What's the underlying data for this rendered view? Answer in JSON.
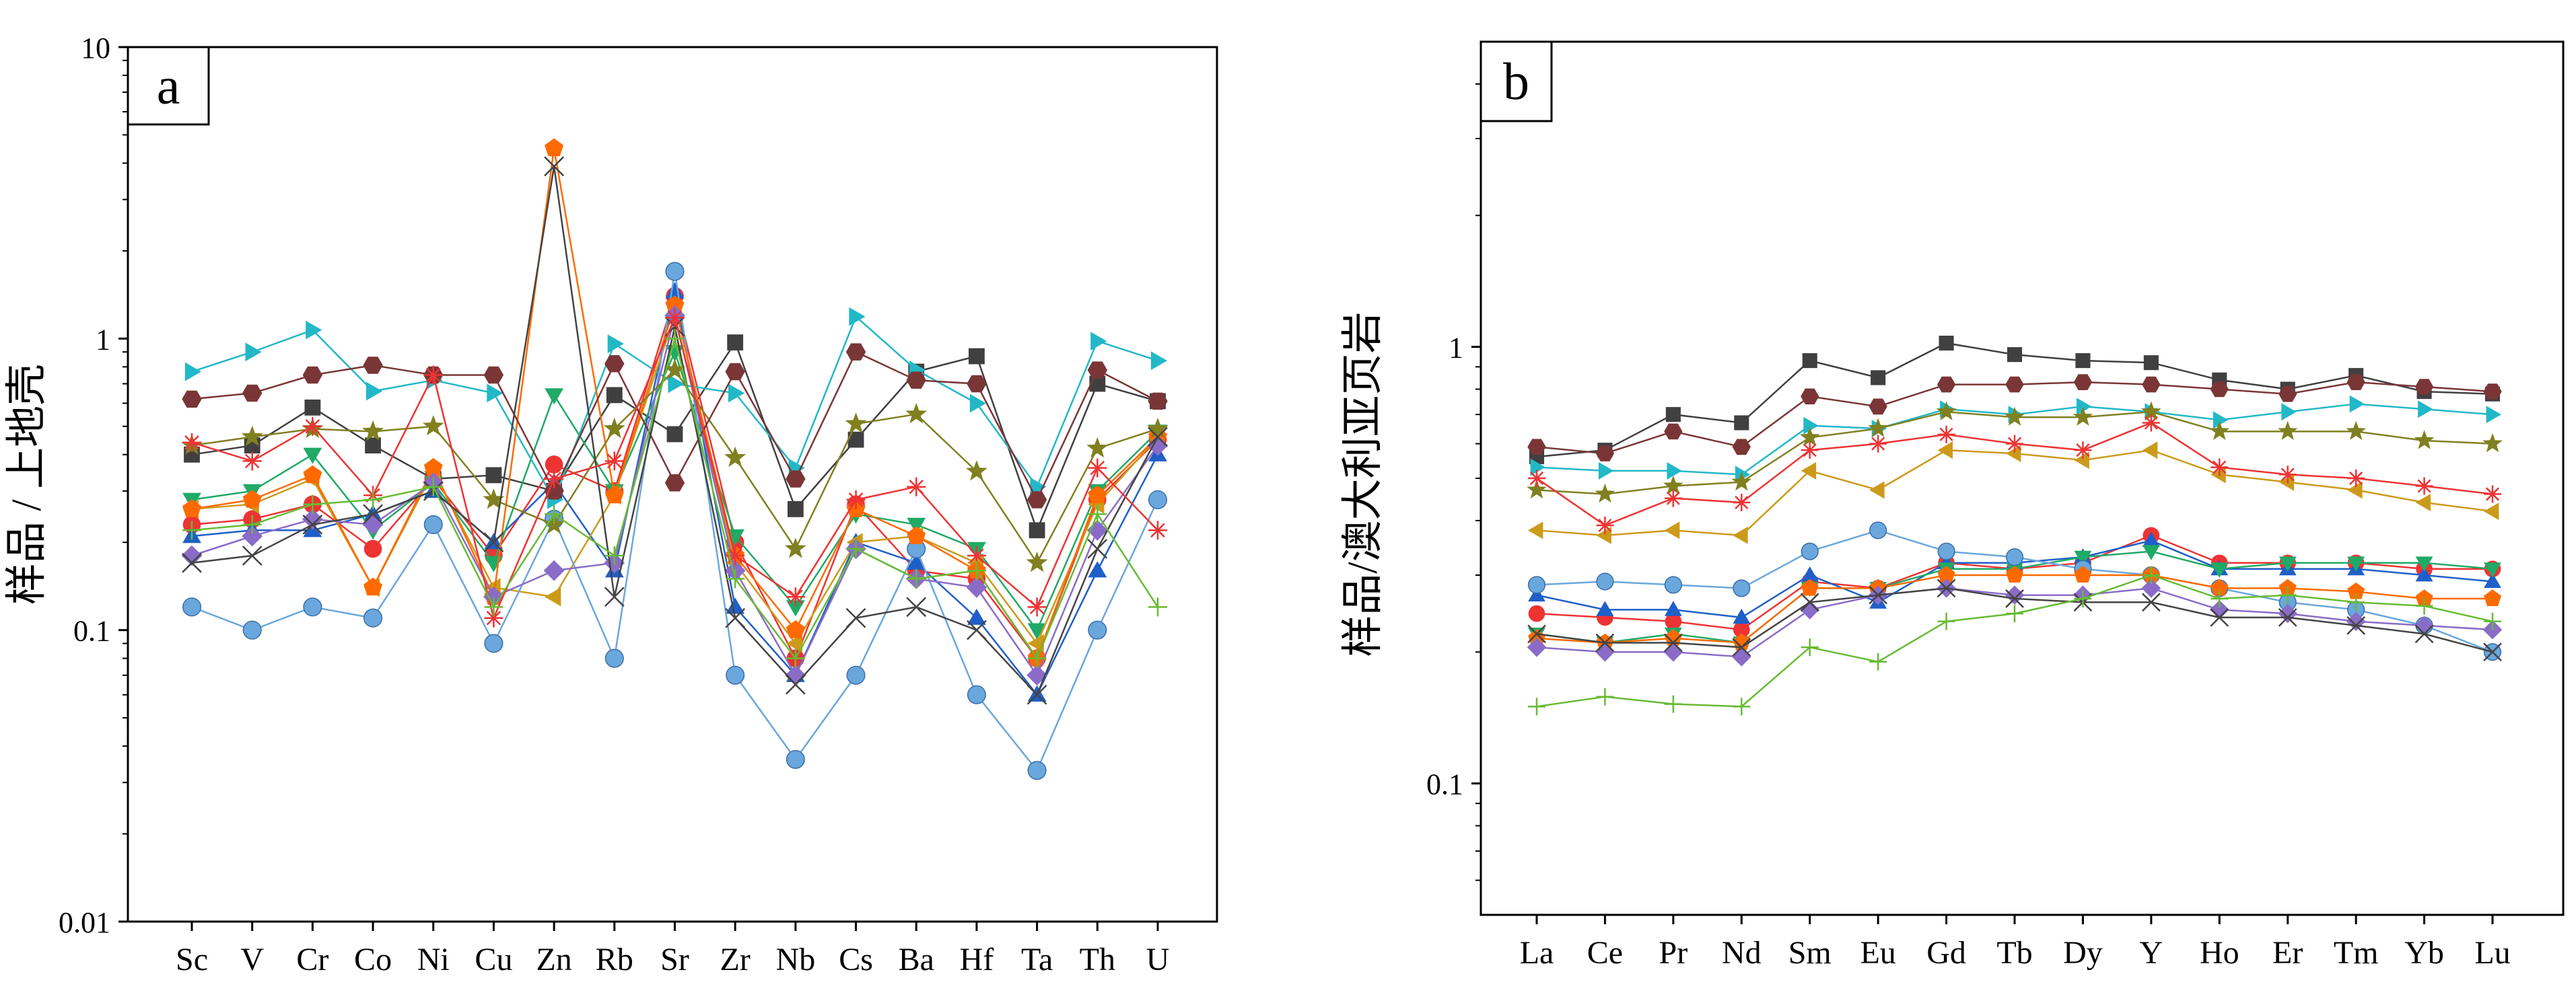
{
  "chart_data": [
    {
      "type": "line",
      "panel_label": "a",
      "ylabel": "样品 / 上地壳",
      "yscale": "log",
      "ylim": [
        0.01,
        10
      ],
      "ytick_labels": [
        "0.01",
        "0.1",
        "1",
        "10"
      ],
      "categories": [
        "Sc",
        "V",
        "Cr",
        "Co",
        "Ni",
        "Cu",
        "Zn",
        "Rb",
        "Sr",
        "Zr",
        "Nb",
        "Cs",
        "Ba",
        "Hf",
        "Ta",
        "Th",
        "U"
      ],
      "series": [
        {
          "color": "#404040",
          "marker": "square",
          "values": [
            0.4,
            0.43,
            0.58,
            0.43,
            0.33,
            0.34,
            0.3,
            0.64,
            0.47,
            0.97,
            0.26,
            0.45,
            0.77,
            0.87,
            0.22,
            0.7,
            0.61
          ]
        },
        {
          "color": "#ee3333",
          "marker": "circle",
          "values": [
            0.23,
            0.24,
            0.27,
            0.19,
            0.33,
            0.18,
            0.37,
            0.3,
            1.4,
            0.2,
            0.08,
            0.27,
            0.16,
            0.15,
            0.08,
            0.28,
            0.45
          ]
        },
        {
          "color": "#1f5fc8",
          "marker": "triangle-up",
          "values": [
            0.21,
            0.22,
            0.22,
            0.25,
            0.3,
            0.2,
            0.32,
            0.16,
            1.45,
            0.12,
            0.07,
            0.2,
            0.17,
            0.11,
            0.06,
            0.16,
            0.4
          ]
        },
        {
          "color": "#1faa66",
          "marker": "triangle-down",
          "values": [
            0.28,
            0.3,
            0.4,
            0.22,
            0.32,
            0.17,
            0.64,
            0.3,
            0.9,
            0.21,
            0.12,
            0.25,
            0.23,
            0.19,
            0.1,
            0.3,
            0.48
          ]
        },
        {
          "color": "#22b8c8",
          "marker": "triangle-right",
          "values": [
            0.77,
            0.9,
            1.07,
            0.66,
            0.72,
            0.65,
            0.28,
            0.96,
            0.7,
            0.65,
            0.36,
            1.19,
            0.78,
            0.6,
            0.31,
            0.98,
            0.84
          ]
        },
        {
          "color": "#cc9a1a",
          "marker": "triangle-left",
          "values": [
            0.26,
            0.27,
            0.33,
            0.14,
            0.35,
            0.14,
            0.13,
            0.29,
            1.2,
            0.17,
            0.09,
            0.2,
            0.21,
            0.17,
            0.09,
            0.27,
            0.46
          ]
        },
        {
          "color": "#6aa7dc",
          "marker": "ball",
          "values": [
            0.12,
            0.1,
            0.12,
            0.11,
            0.23,
            0.09,
            0.24,
            0.08,
            1.7,
            0.07,
            0.036,
            0.07,
            0.19,
            0.06,
            0.033,
            0.1,
            0.28
          ]
        },
        {
          "color": "#ff6a00",
          "marker": "pentagon",
          "values": [
            0.26,
            0.28,
            0.34,
            0.14,
            0.36,
            0.13,
            4.5,
            0.29,
            1.3,
            0.18,
            0.1,
            0.26,
            0.21,
            0.16,
            0.08,
            0.29,
            0.46
          ]
        },
        {
          "color": "#8a6cc8",
          "marker": "diamond",
          "values": [
            0.18,
            0.21,
            0.24,
            0.23,
            0.32,
            0.13,
            0.16,
            0.17,
            1.2,
            0.16,
            0.07,
            0.19,
            0.15,
            0.14,
            0.07,
            0.22,
            0.43
          ]
        },
        {
          "color": "#808020",
          "marker": "star",
          "values": [
            0.43,
            0.46,
            0.49,
            0.48,
            0.5,
            0.28,
            0.23,
            0.49,
            0.78,
            0.39,
            0.19,
            0.51,
            0.55,
            0.35,
            0.17,
            0.42,
            0.49
          ]
        },
        {
          "color": "#7a3636",
          "marker": "hexagon",
          "values": [
            0.62,
            0.65,
            0.75,
            0.81,
            0.75,
            0.75,
            0.3,
            0.82,
            0.32,
            0.77,
            0.33,
            0.9,
            0.72,
            0.7,
            0.28,
            0.78,
            0.61
          ]
        },
        {
          "color": "#444444",
          "marker": "x",
          "values": [
            0.17,
            0.18,
            0.23,
            0.25,
            0.3,
            0.2,
            3.9,
            0.13,
            1.1,
            0.11,
            0.065,
            0.11,
            0.12,
            0.1,
            0.06,
            0.19,
            0.46
          ]
        },
        {
          "color": "#ee3333",
          "marker": "asterisk",
          "values": [
            0.44,
            0.38,
            0.5,
            0.29,
            0.75,
            0.11,
            0.33,
            0.38,
            1.18,
            0.18,
            0.13,
            0.28,
            0.31,
            0.18,
            0.12,
            0.36,
            0.22
          ]
        },
        {
          "color": "#66bb33",
          "marker": "plus",
          "values": [
            0.22,
            0.23,
            0.27,
            0.28,
            0.31,
            0.12,
            0.25,
            0.18,
            1.0,
            0.15,
            0.08,
            0.19,
            0.15,
            0.16,
            0.08,
            0.25,
            0.12
          ]
        }
      ]
    },
    {
      "type": "line",
      "panel_label": "b",
      "ylabel": "样品/澳大利亚页岩",
      "yscale": "log",
      "ylim": [
        0.05,
        5
      ],
      "ytick_labels": [
        "0.1",
        "1"
      ],
      "categories": [
        "La",
        "Ce",
        "Pr",
        "Nd",
        "Sm",
        "Eu",
        "Gd",
        "Tb",
        "Dy",
        "Y",
        "Ho",
        "Er",
        "Tm",
        "Yb",
        "Lu"
      ],
      "series": [
        {
          "color": "#404040",
          "marker": "square",
          "values": [
            0.56,
            0.58,
            0.7,
            0.67,
            0.93,
            0.85,
            1.02,
            0.96,
            0.93,
            0.92,
            0.84,
            0.8,
            0.86,
            0.79,
            0.78
          ]
        },
        {
          "color": "#ee3333",
          "marker": "circle",
          "values": [
            0.245,
            0.24,
            0.235,
            0.225,
            0.29,
            0.28,
            0.32,
            0.31,
            0.32,
            0.37,
            0.32,
            0.32,
            0.32,
            0.31,
            0.31
          ]
        },
        {
          "color": "#1f5fc8",
          "marker": "triangle-up",
          "values": [
            0.27,
            0.25,
            0.25,
            0.24,
            0.3,
            0.26,
            0.32,
            0.32,
            0.33,
            0.36,
            0.31,
            0.31,
            0.31,
            0.3,
            0.29
          ]
        },
        {
          "color": "#1faa66",
          "marker": "triangle-down",
          "values": [
            0.22,
            0.21,
            0.22,
            0.21,
            0.28,
            0.28,
            0.31,
            0.31,
            0.33,
            0.34,
            0.31,
            0.32,
            0.32,
            0.32,
            0.31
          ]
        },
        {
          "color": "#22b8c8",
          "marker": "triangle-right",
          "values": [
            0.53,
            0.52,
            0.52,
            0.51,
            0.66,
            0.65,
            0.72,
            0.7,
            0.73,
            0.71,
            0.68,
            0.71,
            0.74,
            0.72,
            0.7
          ]
        },
        {
          "color": "#cc9a1a",
          "marker": "triangle-left",
          "values": [
            0.38,
            0.37,
            0.38,
            0.37,
            0.52,
            0.47,
            0.58,
            0.57,
            0.55,
            0.58,
            0.51,
            0.49,
            0.47,
            0.44,
            0.42
          ]
        },
        {
          "color": "#6aa7dc",
          "marker": "ball",
          "values": [
            0.285,
            0.29,
            0.285,
            0.28,
            0.34,
            0.38,
            0.34,
            0.33,
            0.31,
            0.3,
            0.28,
            0.26,
            0.25,
            0.23,
            0.2
          ]
        },
        {
          "color": "#ff6a00",
          "marker": "pentagon",
          "values": [
            0.215,
            0.21,
            0.215,
            0.21,
            0.28,
            0.28,
            0.3,
            0.3,
            0.3,
            0.3,
            0.28,
            0.28,
            0.275,
            0.265,
            0.265
          ]
        },
        {
          "color": "#8a6cc8",
          "marker": "diamond",
          "values": [
            0.205,
            0.2,
            0.2,
            0.195,
            0.25,
            0.27,
            0.28,
            0.27,
            0.27,
            0.28,
            0.25,
            0.245,
            0.235,
            0.23,
            0.225
          ]
        },
        {
          "color": "#808020",
          "marker": "star",
          "values": [
            0.47,
            0.46,
            0.48,
            0.49,
            0.62,
            0.65,
            0.71,
            0.69,
            0.69,
            0.71,
            0.64,
            0.64,
            0.64,
            0.61,
            0.6
          ]
        },
        {
          "color": "#7a3636",
          "marker": "hexagon",
          "values": [
            0.59,
            0.57,
            0.64,
            0.59,
            0.77,
            0.73,
            0.82,
            0.82,
            0.83,
            0.82,
            0.8,
            0.78,
            0.83,
            0.81,
            0.79
          ]
        },
        {
          "color": "#444444",
          "marker": "x",
          "values": [
            0.22,
            0.21,
            0.21,
            0.205,
            0.26,
            0.27,
            0.28,
            0.265,
            0.26,
            0.26,
            0.24,
            0.24,
            0.23,
            0.22,
            0.2
          ]
        },
        {
          "color": "#ee3333",
          "marker": "asterisk",
          "values": [
            0.5,
            0.39,
            0.45,
            0.44,
            0.58,
            0.6,
            0.63,
            0.6,
            0.58,
            0.67,
            0.53,
            0.51,
            0.5,
            0.48,
            0.46
          ]
        },
        {
          "color": "#66bb33",
          "marker": "plus",
          "values": [
            0.15,
            0.158,
            0.152,
            0.15,
            0.205,
            0.19,
            0.235,
            0.245,
            0.265,
            0.3,
            0.265,
            0.27,
            0.26,
            0.255,
            0.235
          ]
        }
      ]
    }
  ]
}
